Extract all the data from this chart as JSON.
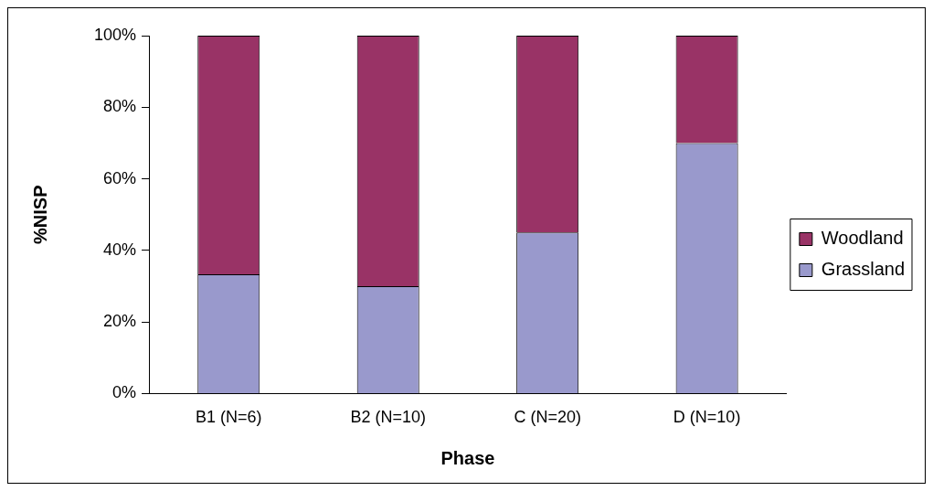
{
  "chart_data": {
    "type": "bar",
    "stacked": true,
    "xlabel": "Phase",
    "ylabel": "%NISP",
    "categories": [
      "B1 (N=6)",
      "B2 (N=10)",
      "C (N=20)",
      "D (N=10)"
    ],
    "series": [
      {
        "name": "Grassland",
        "color": "#9999cc",
        "values": [
          33.3,
          30,
          45,
          70
        ]
      },
      {
        "name": "Woodland",
        "color": "#993366",
        "values": [
          66.7,
          70,
          55,
          30
        ]
      }
    ],
    "ylim": [
      0,
      100
    ],
    "yticks": [
      {
        "value": 0,
        "label": "0%"
      },
      {
        "value": 20,
        "label": "20%"
      },
      {
        "value": 40,
        "label": "40%"
      },
      {
        "value": 60,
        "label": "60%"
      },
      {
        "value": 80,
        "label": "80%"
      },
      {
        "value": 100,
        "label": "100%"
      }
    ],
    "grid": false,
    "legend": "right"
  }
}
